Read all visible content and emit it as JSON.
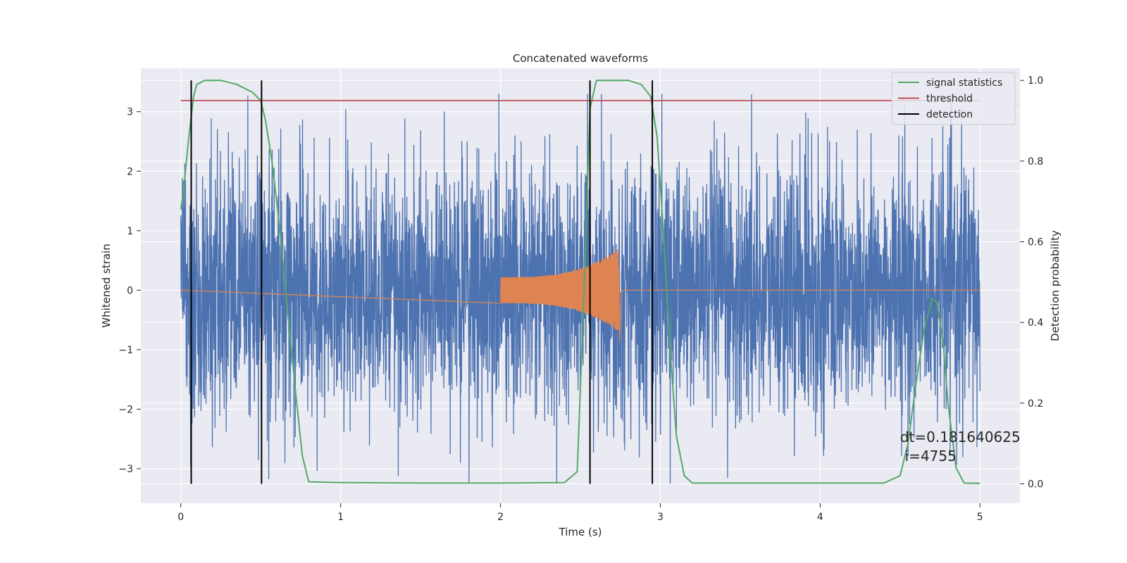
{
  "chart_data": {
    "type": "line",
    "title": "Concatenated waveforms",
    "xlabel": "Time (s)",
    "ylabel": "Whitened strain",
    "y2label": "Detection probability",
    "xlim": [
      -0.25,
      5.25
    ],
    "ylim": [
      -3.58,
      3.73
    ],
    "y2lim": [
      -0.048,
      1.03
    ],
    "x_ticks": [
      0,
      1,
      2,
      3,
      4,
      5
    ],
    "y_ticks": [
      -3,
      -2,
      -1,
      0,
      1,
      2,
      3
    ],
    "y2_ticks": [
      0.0,
      0.2,
      0.4,
      0.6,
      0.8,
      1.0
    ],
    "x_tick_labels": [
      "0",
      "1",
      "2",
      "3",
      "4",
      "5"
    ],
    "y_tick_labels": [
      "−3",
      "−2",
      "−1",
      "0",
      "1",
      "2",
      "3"
    ],
    "y2_tick_labels": [
      "0.0",
      "0.2",
      "0.4",
      "0.6",
      "0.8",
      "1.0"
    ],
    "grid": true,
    "legend_position": "top-right",
    "colors": {
      "strain": "#4c72b0",
      "template": "#dd8452",
      "signal_statistics": "#55a868",
      "threshold": "#c44e52",
      "detection": "#000000",
      "background": "#eaeaf2",
      "grid": "#ffffff"
    },
    "strain": {
      "x_range": [
        0,
        5
      ],
      "sample_count": 4000,
      "typical_amplitude": 2.5,
      "max": 3.3,
      "min": -3.25
    },
    "template_waveform": {
      "x_start": 2.0,
      "x_merger": 2.74,
      "x_end": 2.76,
      "start_amplitude": 0.22,
      "peak_amplitude": 0.7,
      "trough_amplitude": -0.88
    },
    "series": [
      {
        "name": "signal statistics",
        "axis": "right",
        "x": [
          0,
          0.02,
          0.05,
          0.08,
          0.1,
          0.15,
          0.25,
          0.35,
          0.45,
          0.5,
          0.53,
          0.57,
          0.62,
          0.67,
          0.72,
          0.76,
          0.8,
          1.0,
          1.5,
          2.0,
          2.4,
          2.48,
          2.52,
          2.56,
          2.6,
          2.7,
          2.8,
          2.88,
          2.94,
          2.98,
          3.02,
          3.06,
          3.1,
          3.15,
          3.2,
          3.5,
          4.0,
          4.4,
          4.5,
          4.55,
          4.6,
          4.65,
          4.7,
          4.73,
          4.77,
          4.8,
          4.85,
          4.9,
          5.0
        ],
        "values": [
          0.68,
          0.74,
          0.86,
          0.96,
          0.99,
          1.0,
          1.0,
          0.99,
          0.97,
          0.95,
          0.9,
          0.8,
          0.63,
          0.42,
          0.22,
          0.07,
          0.005,
          0.003,
          0.002,
          0.002,
          0.003,
          0.03,
          0.45,
          0.93,
          1.0,
          1.0,
          1.0,
          0.99,
          0.96,
          0.86,
          0.62,
          0.34,
          0.12,
          0.02,
          0.002,
          0.002,
          0.002,
          0.002,
          0.02,
          0.1,
          0.25,
          0.38,
          0.46,
          0.45,
          0.35,
          0.2,
          0.04,
          0.002,
          0.001
        ]
      },
      {
        "name": "threshold",
        "axis": "right",
        "x": [
          0,
          5
        ],
        "values": [
          0.95,
          0.95
        ]
      },
      {
        "name": "detection",
        "axis": "right",
        "type": "vlines",
        "x": [
          0.065,
          0.505,
          2.56,
          2.95
        ],
        "ymin": 0.0,
        "ymax": 1.0
      }
    ],
    "legend": [
      "signal statistics",
      "threshold",
      "detection"
    ],
    "annotations": [
      {
        "text": "dt=0.181640625",
        "x": 4.5,
        "y": -2.55
      },
      {
        "text": "i=4755",
        "x": 4.53,
        "y": -2.87
      }
    ]
  }
}
